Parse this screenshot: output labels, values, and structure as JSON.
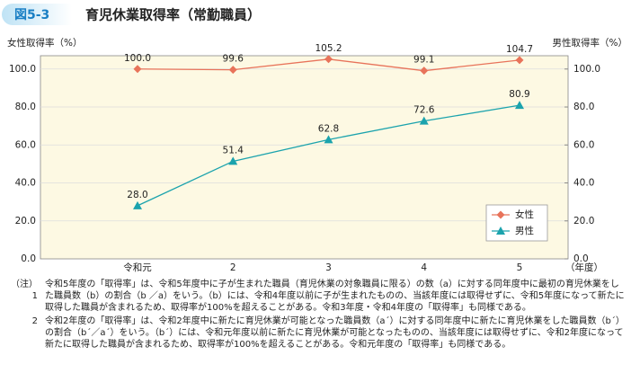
{
  "header": {
    "badge": "図5-3"
  },
  "chart_data": {
    "type": "line",
    "title": "育児休業取得率（常勤職員）",
    "y_label": "女性取得率（%）",
    "y2_label": "男性取得率（%）",
    "x_unit": "（年度）",
    "categories": [
      "令和元",
      "2",
      "3",
      "4",
      "5"
    ],
    "series": [
      {
        "name": "女性",
        "color": "#e8735a",
        "marker": "diamond",
        "axis": "y",
        "values": [
          100,
          99.6,
          105.2,
          99.1,
          104.7
        ],
        "value_labels": [
          "100.0",
          "99.6",
          "105.2",
          "99.1",
          "104.7"
        ]
      },
      {
        "name": "男性",
        "color": "#1ba3ad",
        "marker": "triangle",
        "axis": "y2",
        "values": [
          28,
          51.4,
          62.8,
          72.6,
          80.9
        ],
        "value_labels": [
          "28.0",
          "51.4",
          "62.8",
          "72.6",
          "80.9"
        ]
      }
    ],
    "ylim": [
      0,
      107
    ],
    "yticks": [
      {
        "value": 0,
        "label": "0.0"
      },
      {
        "value": 20,
        "label": "20.0"
      },
      {
        "value": 40,
        "label": "40.0"
      },
      {
        "value": 60,
        "label": "60.0"
      },
      {
        "value": 80,
        "label": "80.0"
      },
      {
        "value": 100,
        "label": "100.0"
      }
    ],
    "y2lim": [
      0,
      107
    ],
    "y2ticks": [
      {
        "value": 0,
        "label": "0.0"
      },
      {
        "value": 20,
        "label": "20.0"
      },
      {
        "value": 40,
        "label": "40.0"
      },
      {
        "value": 60,
        "label": "60.0"
      },
      {
        "value": 80,
        "label": "80.0"
      },
      {
        "value": 100,
        "label": "100.0"
      }
    ],
    "grid": true,
    "legend": "lower right"
  },
  "notes": [
    {
      "marker": "（注）1",
      "text": "令和5年度の「取得率」は、令和5年度中に子が生まれた職員（育児休業の対象職員に限る）の数（a）に対する同年度中に最初の育児休業をした職員数（b）の割合（b ／a）をいう。（b）には、令和4年度以前に子が生まれたものの、当該年度には取得せずに、令和5年度になって新たに取得した職員が含まれるため、取得率が100%を超えることがある。令和3年度・令和4年度の「取得率」も同様である。"
    },
    {
      "marker": "2",
      "text": "令和2年度の「取得率」は、令和2年度中に新たに育児休業が可能となった職員数（a´）に対する同年度中に新たに育児休業をした職員数（b´）の割合（b´／a´）をいう。（b´）には、令和元年度以前に新たに育児休業が可能となったものの、当該年度には取得せずに、令和2年度になって新たに取得した職員が含まれるため、取得率が100%を超えることがある。令和元年度の「取得率」も同様である。"
    }
  ]
}
